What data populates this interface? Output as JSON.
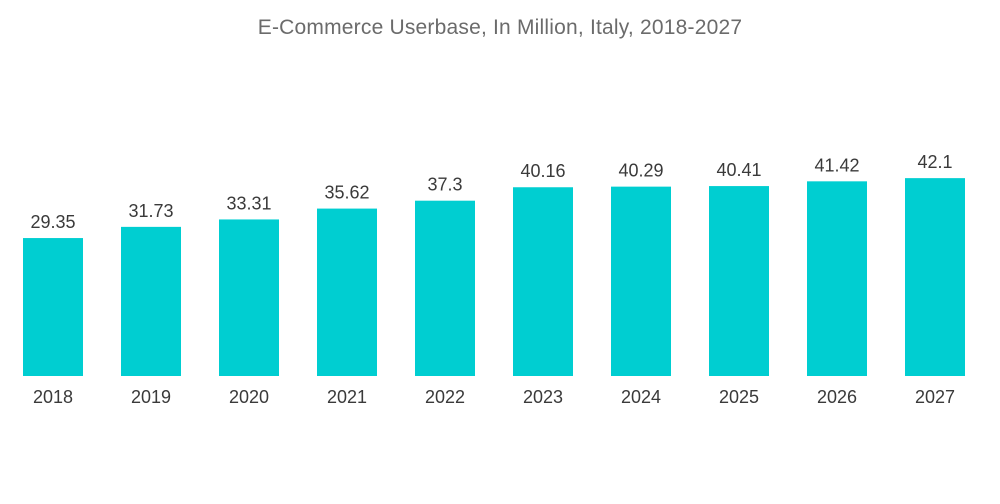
{
  "chart_data": {
    "type": "bar",
    "title": "E-Commerce Userbase, In Million, Italy, 2018-2027",
    "xlabel": "",
    "ylabel": "",
    "categories": [
      "2018",
      "2019",
      "2020",
      "2021",
      "2022",
      "2023",
      "2024",
      "2025",
      "2026",
      "2027"
    ],
    "values": [
      29.35,
      31.73,
      33.31,
      35.62,
      37.3,
      40.16,
      40.29,
      40.41,
      41.42,
      42.1
    ],
    "value_labels": [
      "29.35",
      "31.73",
      "33.31",
      "35.62",
      "37.3",
      "40.16",
      "40.29",
      "40.41",
      "41.42",
      "42.1"
    ],
    "grid": false,
    "legend": "none",
    "bar_color": "#00CED1"
  }
}
